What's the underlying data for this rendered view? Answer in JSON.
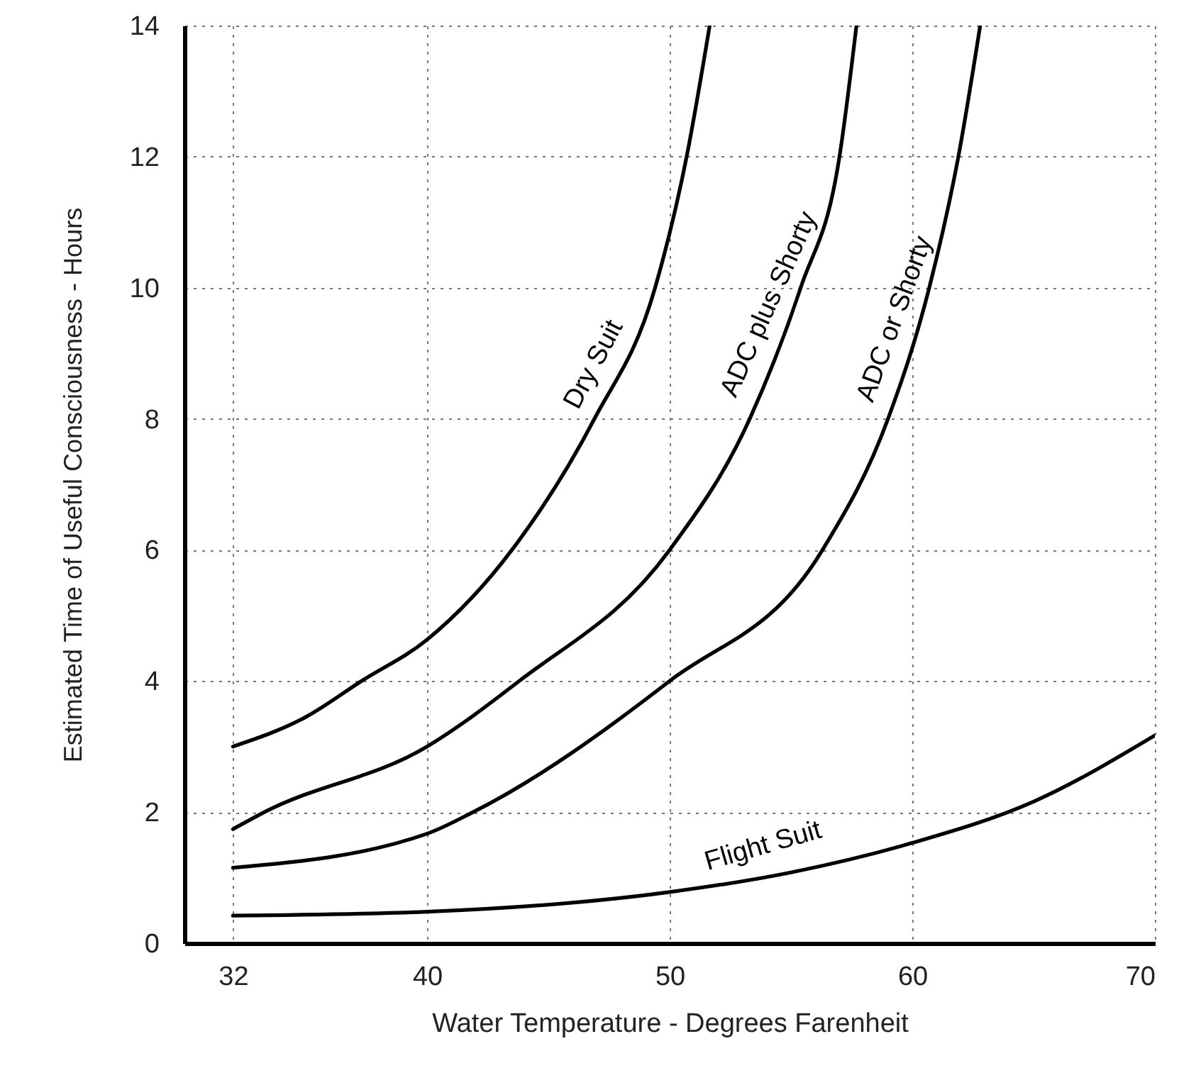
{
  "chart_data": {
    "type": "line",
    "xlabel": "Water Temperature - Degrees Farenheit",
    "ylabel": "Estimated Time of Useful Consciousness - Hours",
    "xlim": [
      30,
      70
    ],
    "xticks": [
      32,
      40,
      50,
      60,
      70
    ],
    "ylim": [
      0,
      14
    ],
    "yticks": [
      0,
      2,
      4,
      6,
      8,
      10,
      12,
      14
    ],
    "grid": true,
    "line_style": "solid",
    "series": [
      {
        "name": "Dry Suit",
        "color": "#000000",
        "x": [
          32,
          35,
          37.3,
          40,
          43.5,
          46.9,
          49.4,
          50.7,
          51.65
        ],
        "values": [
          3.0,
          3.45,
          4,
          4.63,
          6,
          8,
          10,
          12,
          14
        ]
      },
      {
        "name": "ADC plus Shorty",
        "color": "#000000",
        "x": [
          32,
          33.3,
          40,
          43.8,
          50,
          53.3,
          55.4,
          57,
          57.7
        ],
        "values": [
          1.74,
          2,
          3.0,
          4,
          6,
          8,
          10,
          12,
          14
        ]
      },
      {
        "name": "ADC or Shorty",
        "color": "#000000",
        "x": [
          32,
          40,
          41.9,
          50,
          56.3,
          59,
          60.7,
          61.9,
          62.8
        ],
        "values": [
          1.15,
          1.67,
          2,
          4,
          6,
          8,
          10,
          12,
          14
        ]
      },
      {
        "name": "Flight Suit",
        "color": "#000000",
        "x": [
          32,
          40,
          50,
          55,
          60,
          65,
          70
        ],
        "values": [
          0.42,
          0.48,
          0.78,
          1.08,
          1.53,
          2.16,
          3.17
        ]
      }
    ]
  }
}
